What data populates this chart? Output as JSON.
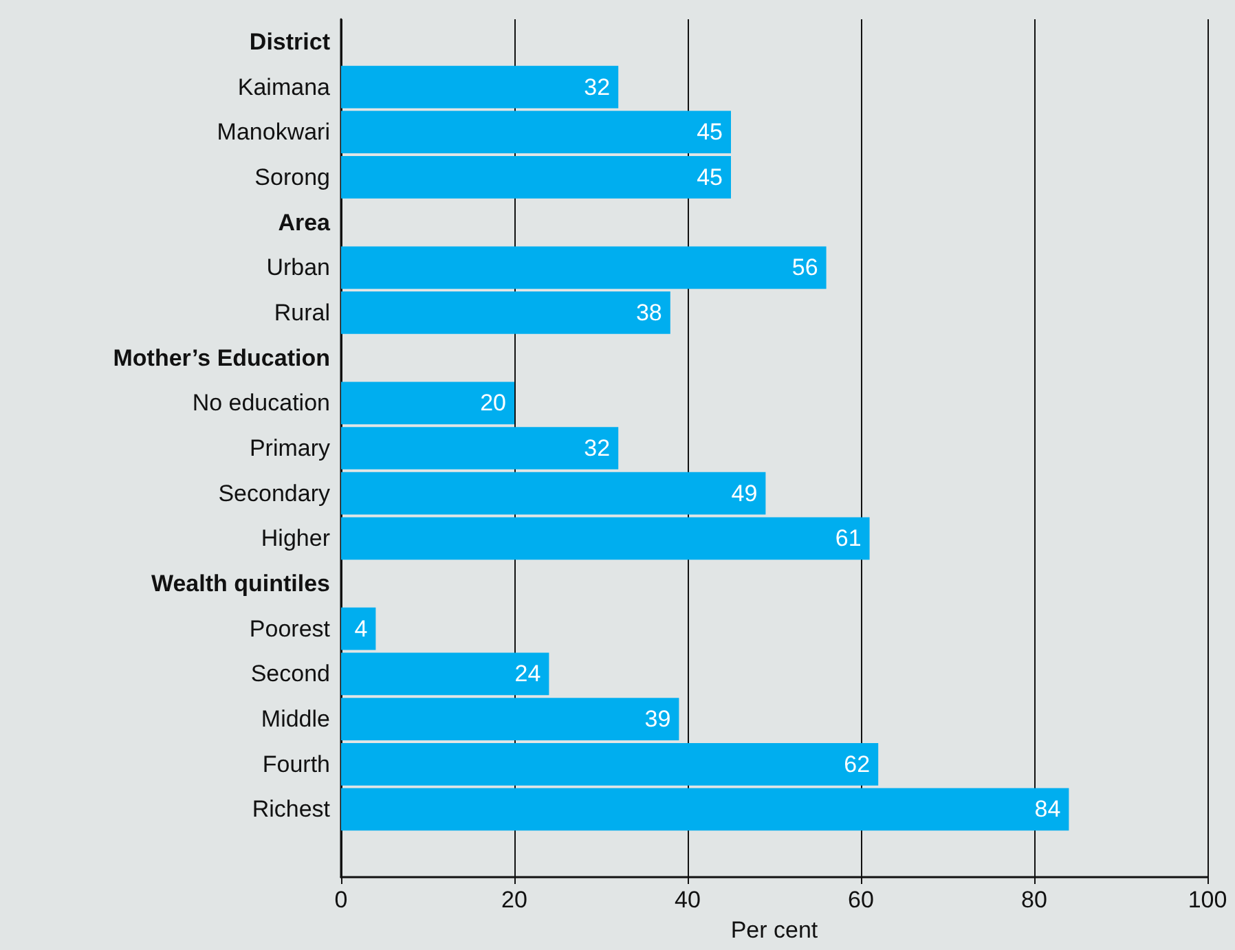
{
  "chart_data": {
    "type": "bar",
    "orientation": "horizontal",
    "xlabel": "Per cent",
    "categories": [
      "District",
      "Kaimana",
      "Manokwari",
      "Sorong",
      "Area",
      "Urban",
      "Rural",
      "Mother’s Education",
      "No education",
      "Primary",
      "Secondary",
      "Higher",
      "Wealth quintiles",
      "Poorest",
      "Second",
      "Middle",
      "Fourth",
      "Richest",
      null
    ],
    "values": [
      null,
      32,
      45,
      45,
      null,
      56,
      38,
      null,
      20,
      32,
      49,
      61,
      null,
      4,
      24,
      39,
      62,
      84,
      null
    ],
    "color": "#00aeef",
    "xlim": [
      0,
      100
    ],
    "xticks": [
      0,
      20,
      40,
      60,
      80,
      100
    ],
    "grid": "x",
    "data_labels": true
  }
}
